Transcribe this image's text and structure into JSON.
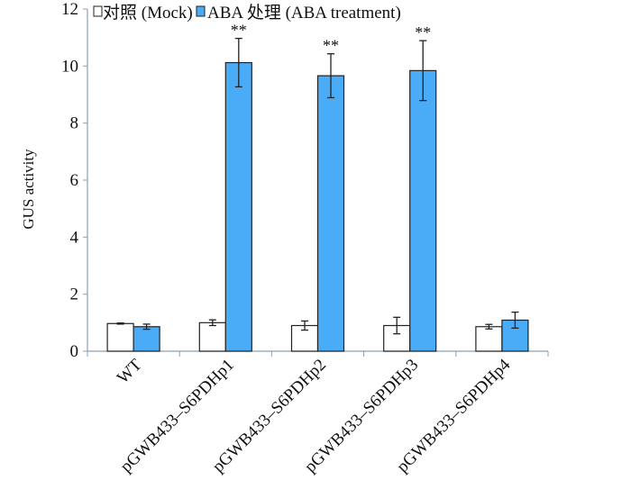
{
  "chart_data": {
    "type": "bar",
    "title": "",
    "xlabel": "",
    "ylabel": "GUS activity",
    "ylim": [
      0,
      12
    ],
    "yticks": [
      0,
      2,
      4,
      6,
      8,
      10,
      12
    ],
    "grid": false,
    "legend_position": "top-left",
    "categories": [
      "WT",
      "pGWB433–S6PDHp1",
      "pGWB433–S6PDHp2",
      "pGWB433–S6PDHp3",
      "pGWB433–S6PDHp4"
    ],
    "series": [
      {
        "name": "对照 (Mock)",
        "color": "#ffffff",
        "values": [
          0.97,
          1.0,
          0.9,
          0.9,
          0.86
        ],
        "errors": [
          0.02,
          0.1,
          0.16,
          0.29,
          0.08
        ]
      },
      {
        "name": "ABA 处理 (ABA treatment)",
        "color": "#4aabf7",
        "values": [
          0.86,
          10.12,
          9.66,
          9.84,
          1.09
        ],
        "errors": [
          0.09,
          0.85,
          0.77,
          1.05,
          0.28
        ]
      }
    ],
    "annotations": [
      "",
      "**",
      "**",
      "**",
      ""
    ]
  }
}
